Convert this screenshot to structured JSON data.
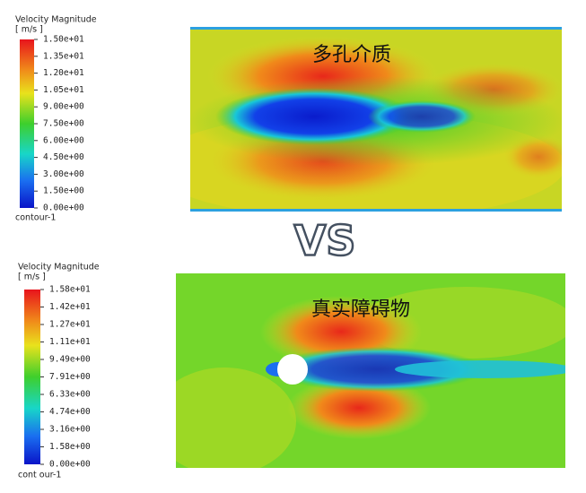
{
  "panels": [
    {
      "legend": {
        "title": "Velocity Magnitude",
        "units": "[ m/s ]",
        "ticks": [
          "1.50e+01",
          "1.35e+01",
          "1.20e+01",
          "1.05e+01",
          "9.00e+00",
          "7.50e+00",
          "6.00e+00",
          "4.50e+00",
          "3.00e+00",
          "1.50e+00",
          "0.00e+00"
        ],
        "label": "contour-1"
      },
      "caption": "多孔介质"
    },
    {
      "legend": {
        "title": "Velocity Magnitude",
        "units": "[ m/s ]",
        "ticks": [
          "1.58e+01",
          "1.42e+01",
          "1.27e+01",
          "1.11e+01",
          "9.49e+00",
          "7.91e+00",
          "6.33e+00",
          "4.74e+00",
          "3.16e+00",
          "1.58e+00",
          "0.00e+00"
        ],
        "label": "cont our-1"
      },
      "caption": "真实障碍物"
    }
  ],
  "separator": "VS"
}
